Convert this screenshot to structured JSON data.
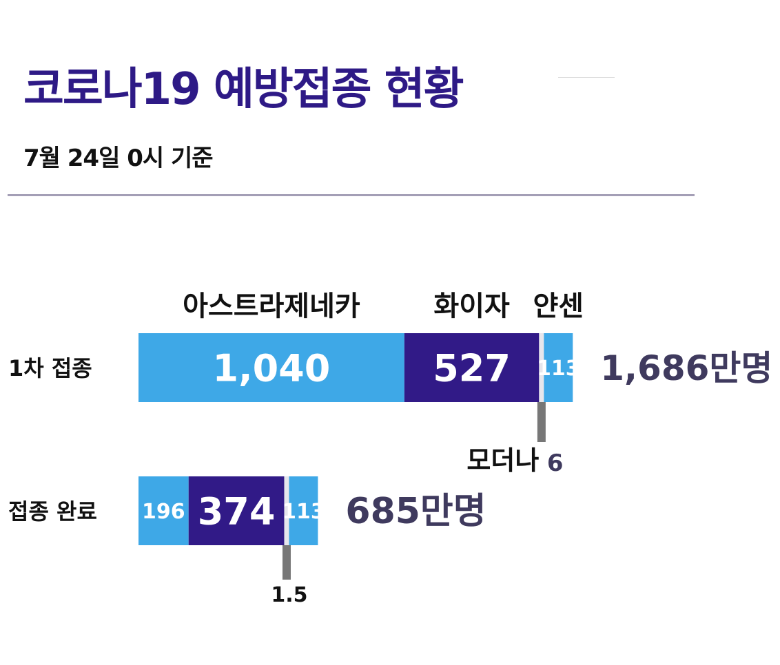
{
  "title": "코로나19 예방접종 현황",
  "subtitle": "7월 24일 0시 기준",
  "colors": {
    "astrazeneca": "#3ea8e7",
    "pfizer": "#311a87",
    "moderna": "#e6e6ec",
    "janssen": "#3ea8e7",
    "leader": "#777777",
    "total": "#3f3a5e",
    "title": "#2e1a86"
  },
  "chart_data": {
    "type": "bar",
    "orientation": "horizontal",
    "stacked": true,
    "unit": "만명",
    "categories": [
      "1차 접종",
      "접종 완료"
    ],
    "series": [
      {
        "name": "아스트라제네카",
        "values": [
          1040,
          196
        ],
        "labels": [
          "1,040",
          "196"
        ]
      },
      {
        "name": "화이자",
        "values": [
          527,
          374
        ],
        "labels": [
          "527",
          "374"
        ]
      },
      {
        "name": "모더나",
        "values": [
          6,
          1.5
        ],
        "labels": [
          "6",
          "1.5"
        ]
      },
      {
        "name": "얀센",
        "values": [
          113,
          113
        ],
        "labels": [
          "113",
          "113"
        ]
      }
    ],
    "totals": [
      "1,686만명",
      "685만명"
    ]
  }
}
